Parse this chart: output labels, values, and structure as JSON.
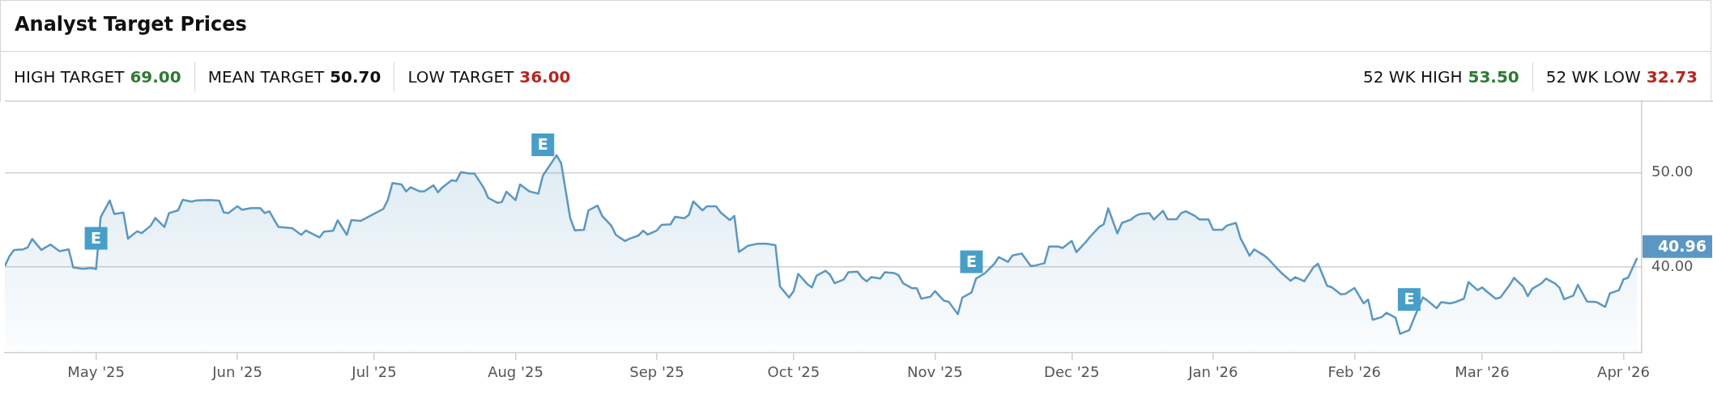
{
  "chart_data": {
    "type": "area",
    "title": "Analyst Target Prices",
    "annotations": [
      "HIGH TARGET",
      "69.00",
      "MEAN TARGET",
      "50.70",
      "LOW TARGET",
      "36.00",
      "52 WK HIGH",
      "53.50",
      "52 WK LOW",
      "32.73",
      {
        "text": "E",
        "x": "2025-05-01",
        "y": 39.78
      },
      {
        "text": "E",
        "x": "2025-08-07",
        "y": 49.7
      },
      {
        "text": "E",
        "x": "2025-11-09",
        "y": 37.29
      },
      {
        "text": "E",
        "x": "2026-02-13",
        "y": 33.29
      }
    ],
    "xlim": [
      "2025-04-11",
      "2026-04-05"
    ],
    "xticks": [
      {
        "value": "2025-05-01",
        "label": "May '25"
      },
      {
        "value": "2025-06-01",
        "label": "Jun '25"
      },
      {
        "value": "2025-07-01",
        "label": "Jul '25"
      },
      {
        "value": "2025-08-01",
        "label": "Aug '25"
      },
      {
        "value": "2025-09-01",
        "label": "Sep '25"
      },
      {
        "value": "2025-10-01",
        "label": "Oct '25"
      },
      {
        "value": "2025-11-01",
        "label": "Nov '25"
      },
      {
        "value": "2025-12-01",
        "label": "Dec '25"
      },
      {
        "value": "2026-01-01",
        "label": "Jan '26"
      },
      {
        "value": "2026-02-01",
        "label": "Feb '26"
      },
      {
        "value": "2026-03-01",
        "label": "Mar '26"
      },
      {
        "value": "2026-04-01",
        "label": "Apr '26"
      }
    ],
    "ylim": [
      30.9,
      57.6
    ],
    "yticks": [
      {
        "value": 40,
        "label": "40.00"
      },
      {
        "value": 50,
        "label": "50.00"
      }
    ],
    "grid": "y",
    "legend": false,
    "marker": "none",
    "series": [
      {
        "color": "#5b97c2",
        "x": [
          "2025-04-11",
          "2025-04-12",
          "2025-04-13",
          "2025-04-15",
          "2025-04-16",
          "2025-04-17",
          "2025-04-19",
          "2025-04-21",
          "2025-04-23",
          "2025-04-25",
          "2025-04-26",
          "2025-04-28",
          "2025-04-30",
          "2025-05-01",
          "2025-05-02",
          "2025-05-04",
          "2025-05-05",
          "2025-05-07",
          "2025-05-08",
          "2025-05-10",
          "2025-05-11",
          "2025-05-13",
          "2025-05-14",
          "2025-05-16",
          "2025-05-17",
          "2025-05-19",
          "2025-05-20",
          "2025-05-22",
          "2025-05-23",
          "2025-05-26",
          "2025-05-28",
          "2025-05-29",
          "2025-05-30",
          "2025-06-01",
          "2025-06-02",
          "2025-06-04",
          "2025-06-06",
          "2025-06-07",
          "2025-06-08",
          "2025-06-10",
          "2025-06-13",
          "2025-06-15",
          "2025-06-16",
          "2025-06-19",
          "2025-06-20",
          "2025-06-22",
          "2025-06-23",
          "2025-06-25",
          "2025-06-26",
          "2025-06-28",
          "2025-07-03",
          "2025-07-04",
          "2025-07-05",
          "2025-07-07",
          "2025-07-08",
          "2025-07-09",
          "2025-07-11",
          "2025-07-12",
          "2025-07-14",
          "2025-07-15",
          "2025-07-16",
          "2025-07-18",
          "2025-07-19",
          "2025-07-20",
          "2025-07-22",
          "2025-07-23",
          "2025-07-25",
          "2025-07-26",
          "2025-07-28",
          "2025-07-29",
          "2025-07-30",
          "2025-08-01",
          "2025-08-02",
          "2025-08-04",
          "2025-08-06",
          "2025-08-07",
          "2025-08-10",
          "2025-08-11",
          "2025-08-13",
          "2025-08-14",
          "2025-08-16",
          "2025-08-17",
          "2025-08-19",
          "2025-08-20",
          "2025-08-22",
          "2025-08-23",
          "2025-08-25",
          "2025-08-26",
          "2025-08-28",
          "2025-08-29",
          "2025-08-30",
          "2025-09-01",
          "2025-09-02",
          "2025-09-04",
          "2025-09-05",
          "2025-09-07",
          "2025-09-08",
          "2025-09-09",
          "2025-09-11",
          "2025-09-12",
          "2025-09-14",
          "2025-09-15",
          "2025-09-17",
          "2025-09-18",
          "2025-09-19",
          "2025-09-21",
          "2025-09-23",
          "2025-09-25",
          "2025-09-27",
          "2025-09-28",
          "2025-09-30",
          "2025-10-01",
          "2025-10-02",
          "2025-10-04",
          "2025-10-05",
          "2025-10-06",
          "2025-10-08",
          "2025-10-09",
          "2025-10-10",
          "2025-10-12",
          "2025-10-13",
          "2025-10-15",
          "2025-10-16",
          "2025-10-17",
          "2025-10-18",
          "2025-10-20",
          "2025-10-21",
          "2025-10-23",
          "2025-10-24",
          "2025-10-25",
          "2025-10-27",
          "2025-10-28",
          "2025-10-29",
          "2025-10-31",
          "2025-11-01",
          "2025-11-03",
          "2025-11-04",
          "2025-11-06",
          "2025-11-07",
          "2025-11-09",
          "2025-11-10",
          "2025-11-12",
          "2025-11-14",
          "2025-11-15",
          "2025-11-17",
          "2025-11-18",
          "2025-11-20",
          "2025-11-22",
          "2025-11-23",
          "2025-11-25",
          "2025-11-26",
          "2025-11-28",
          "2025-11-29",
          "2025-12-01",
          "2025-12-02",
          "2025-12-04",
          "2025-12-05",
          "2025-12-07",
          "2025-12-08",
          "2025-12-09",
          "2025-12-11",
          "2025-12-12",
          "2025-12-14",
          "2025-12-15",
          "2025-12-16",
          "2025-12-18",
          "2025-12-19",
          "2025-12-21",
          "2025-12-22",
          "2025-12-24",
          "2025-12-25",
          "2025-12-26",
          "2025-12-28",
          "2025-12-29",
          "2025-12-31",
          "2026-01-01",
          "2026-01-03",
          "2026-01-04",
          "2026-01-06",
          "2026-01-07",
          "2026-01-09",
          "2026-01-10",
          "2026-01-12",
          "2026-01-13",
          "2026-01-15",
          "2026-01-16",
          "2026-01-18",
          "2026-01-19",
          "2026-01-21",
          "2026-01-23",
          "2026-01-24",
          "2026-01-26",
          "2026-01-27",
          "2026-01-29",
          "2026-01-30",
          "2026-02-01",
          "2026-02-03",
          "2026-02-04",
          "2026-02-05",
          "2026-02-07",
          "2026-02-08",
          "2026-02-10",
          "2026-02-11",
          "2026-02-13",
          "2026-02-14",
          "2026-02-16",
          "2026-02-17",
          "2026-02-19",
          "2026-02-20",
          "2026-02-22",
          "2026-02-23",
          "2026-02-25",
          "2026-02-26",
          "2026-02-28",
          "2026-03-01",
          "2026-03-02",
          "2026-03-04",
          "2026-03-05",
          "2026-03-07",
          "2026-03-08",
          "2026-03-10",
          "2026-03-11",
          "2026-03-12",
          "2026-03-14",
          "2026-03-15",
          "2026-03-17",
          "2026-03-18",
          "2026-03-19",
          "2026-03-21",
          "2026-03-22",
          "2026-03-24",
          "2026-03-26",
          "2026-03-28",
          "2026-03-29",
          "2026-03-31",
          "2026-04-01",
          "2026-04-02",
          "2026-04-04"
        ],
        "values": [
          40.1,
          41.14,
          41.81,
          41.87,
          42.08,
          42.97,
          41.81,
          42.38,
          41.67,
          41.87,
          39.95,
          39.81,
          39.89,
          39.78,
          45.27,
          47.05,
          45.63,
          45.77,
          43.0,
          43.79,
          43.59,
          44.39,
          45.21,
          44.24,
          45.72,
          46.01,
          47.13,
          46.93,
          47.07,
          47.1,
          47.04,
          45.8,
          45.72,
          46.45,
          46.07,
          46.25,
          46.25,
          45.72,
          45.92,
          44.24,
          44.12,
          43.41,
          43.88,
          43.14,
          43.76,
          43.85,
          44.95,
          43.41,
          44.98,
          44.89,
          46.16,
          47.13,
          48.91,
          48.76,
          48.02,
          48.46,
          48.02,
          48.02,
          48.67,
          47.93,
          48.46,
          49.2,
          49.11,
          50.06,
          49.91,
          49.91,
          48.43,
          47.34,
          46.81,
          46.9,
          47.99,
          47.1,
          48.76,
          48.02,
          47.78,
          49.7,
          51.86,
          51.03,
          45.18,
          43.88,
          43.94,
          46.01,
          46.51,
          45.42,
          44.39,
          43.41,
          42.76,
          43.0,
          43.35,
          43.85,
          43.44,
          43.88,
          44.47,
          44.53,
          45.33,
          45.18,
          45.51,
          46.96,
          46.01,
          46.45,
          46.45,
          45.77,
          44.98,
          45.42,
          41.58,
          42.26,
          42.46,
          42.46,
          42.32,
          37.94,
          36.76,
          37.44,
          39.27,
          38.18,
          37.83,
          39.07,
          39.6,
          39.16,
          38.27,
          38.68,
          39.45,
          39.51,
          38.86,
          38.48,
          38.92,
          38.77,
          39.45,
          39.36,
          39.13,
          38.27,
          37.74,
          37.74,
          36.64,
          36.85,
          37.44,
          36.41,
          36.32,
          34.99,
          36.76,
          37.29,
          38.77,
          39.36,
          40.34,
          41.05,
          40.54,
          41.22,
          41.43,
          40.1,
          40.16,
          40.4,
          42.17,
          42.17,
          42.02,
          42.76,
          41.58,
          42.61,
          43.2,
          44.24,
          44.53,
          46.22,
          43.56,
          44.68,
          45.04,
          45.42,
          45.63,
          45.72,
          45.04,
          45.95,
          45.07,
          45.07,
          45.72,
          45.92,
          45.42,
          45.04,
          45.04,
          43.94,
          43.94,
          44.39,
          44.68,
          43.06,
          41.19,
          41.87,
          41.28,
          40.9,
          39.86,
          39.36,
          38.53,
          38.92,
          38.49,
          39.97,
          40.34,
          38.0,
          37.86,
          37.11,
          37.14,
          37.77,
          36.14,
          36.54,
          34.4,
          34.69,
          35.14,
          34.63,
          32.91,
          33.29,
          34.49,
          36.77,
          36.43,
          35.63,
          36.26,
          36.14,
          36.26,
          36.63,
          38.4,
          37.54,
          37.83,
          37.4,
          36.63,
          36.77,
          38.06,
          38.86,
          37.91,
          36.91,
          37.69,
          38.26,
          38.77,
          38.26,
          37.77,
          36.57,
          36.97,
          38.11,
          36.34,
          36.29,
          35.77,
          37.2,
          37.54,
          38.69,
          38.86,
          40.96
        ],
        "value_labels": [
          null,
          null,
          null,
          null,
          null,
          null,
          null,
          null,
          null,
          null,
          null,
          null,
          null,
          null,
          null,
          null,
          null,
          null,
          null,
          null,
          null,
          null,
          null,
          null,
          null,
          null,
          null,
          null,
          null,
          null,
          null,
          null,
          null,
          null,
          null,
          null,
          null,
          null,
          null,
          null,
          null,
          null,
          null,
          null,
          null,
          null,
          null,
          null,
          null,
          null,
          null,
          null,
          null,
          null,
          null,
          null,
          null,
          null,
          null,
          null,
          null,
          null,
          null,
          null,
          null,
          null,
          null,
          null,
          null,
          null,
          null,
          null,
          null,
          null,
          null,
          null,
          null,
          null,
          null,
          null,
          null,
          null,
          null,
          null,
          null,
          null,
          null,
          null,
          null,
          null,
          null,
          null,
          null,
          null,
          null,
          null,
          null,
          null,
          null,
          null,
          null,
          null,
          null,
          null,
          null,
          null,
          null,
          null,
          null,
          null,
          null,
          null,
          null,
          null,
          null,
          null,
          null,
          null,
          null,
          null,
          null,
          null,
          null,
          null,
          null,
          null,
          null,
          null,
          null,
          null,
          null,
          null,
          null,
          null,
          null,
          null,
          null,
          null,
          null,
          null,
          null,
          null,
          null,
          null,
          null,
          null,
          null,
          null,
          null,
          null,
          null,
          null,
          null,
          null,
          null,
          null,
          null,
          null,
          null,
          null,
          null,
          null,
          null,
          null,
          null,
          null,
          null,
          null,
          null,
          null,
          null,
          null,
          null,
          null,
          null,
          null,
          null,
          null,
          null,
          null,
          null,
          null,
          null,
          null,
          null,
          null,
          null,
          null,
          null,
          null,
          null,
          null,
          null,
          null,
          null,
          null,
          null,
          null,
          null,
          null,
          null,
          null,
          null,
          null,
          null,
          null,
          null,
          null,
          null,
          null,
          null,
          null,
          null,
          null,
          null,
          null,
          null,
          null,
          null,
          null,
          null,
          null,
          null,
          null,
          null,
          null,
          null,
          null,
          null,
          null,
          null,
          null,
          null,
          null,
          null,
          null,
          null,
          "40.96"
        ]
      }
    ]
  }
}
